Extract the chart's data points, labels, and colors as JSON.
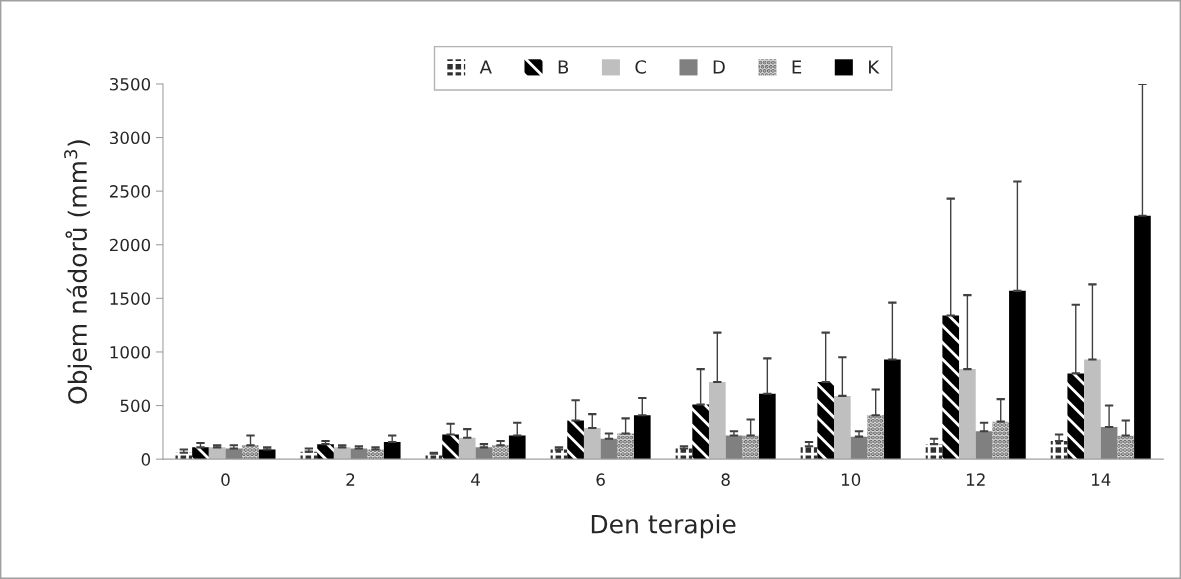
{
  "chart_data": {
    "type": "bar",
    "xlabel": "Den terapie",
    "ylabel": "Objem nádorů (mm$^{3}$)",
    "categories": [
      "0",
      "2",
      "4",
      "6",
      "8",
      "10",
      "12",
      "14"
    ],
    "series": [
      {
        "name": "A",
        "color": "#303030",
        "values": [
          60,
          70,
          50,
          90,
          100,
          120,
          140,
          170
        ],
        "errors": [
          [
            60,
            90
          ],
          [
            70,
            100
          ],
          [
            50,
            60
          ],
          [
            90,
            110
          ],
          [
            100,
            120
          ],
          [
            120,
            160
          ],
          [
            140,
            190
          ],
          [
            170,
            230
          ]
        ]
      },
      {
        "name": "B",
        "color": "#000000",
        "values": [
          110,
          140,
          230,
          360,
          510,
          720,
          1340,
          800
        ],
        "errors": [
          [
            110,
            150
          ],
          [
            140,
            170
          ],
          [
            230,
            330
          ],
          [
            360,
            550
          ],
          [
            510,
            840
          ],
          [
            720,
            1180
          ],
          [
            1340,
            2430
          ],
          [
            800,
            1440
          ]
        ]
      },
      {
        "name": "C",
        "color": "#bfbfbf",
        "values": [
          110,
          110,
          200,
          290,
          720,
          590,
          840,
          930
        ],
        "errors": [
          [
            110,
            130
          ],
          [
            110,
            130
          ],
          [
            200,
            280
          ],
          [
            290,
            420
          ],
          [
            720,
            1180
          ],
          [
            590,
            950
          ],
          [
            840,
            1530
          ],
          [
            930,
            1630
          ]
        ]
      },
      {
        "name": "D",
        "color": "#808080",
        "values": [
          100,
          100,
          110,
          190,
          220,
          210,
          260,
          300
        ],
        "errors": [
          [
            100,
            130
          ],
          [
            100,
            120
          ],
          [
            110,
            140
          ],
          [
            190,
            240
          ],
          [
            220,
            260
          ],
          [
            210,
            260
          ],
          [
            260,
            340
          ],
          [
            300,
            500
          ]
        ]
      },
      {
        "name": "E",
        "color": "#d9d9d9",
        "values": [
          130,
          90,
          130,
          240,
          220,
          410,
          350,
          220
        ],
        "errors": [
          [
            130,
            220
          ],
          [
            90,
            110
          ],
          [
            130,
            170
          ],
          [
            240,
            380
          ],
          [
            220,
            370
          ],
          [
            410,
            650
          ],
          [
            350,
            560
          ],
          [
            220,
            360
          ]
        ]
      },
      {
        "name": "K",
        "color": "#000000",
        "values": [
          90,
          160,
          220,
          410,
          610,
          930,
          1570,
          2270
        ],
        "errors": [
          [
            90,
            110
          ],
          [
            160,
            220
          ],
          [
            220,
            340
          ],
          [
            410,
            570
          ],
          [
            610,
            940
          ],
          [
            930,
            1460
          ],
          [
            1570,
            2590
          ],
          [
            2270,
            3500
          ]
        ]
      }
    ],
    "ylim": [
      0,
      3500
    ],
    "yticks": [
      0,
      500,
      1000,
      1500,
      2000,
      2500,
      3000,
      3500
    ],
    "legend": "top",
    "grid": false
  }
}
